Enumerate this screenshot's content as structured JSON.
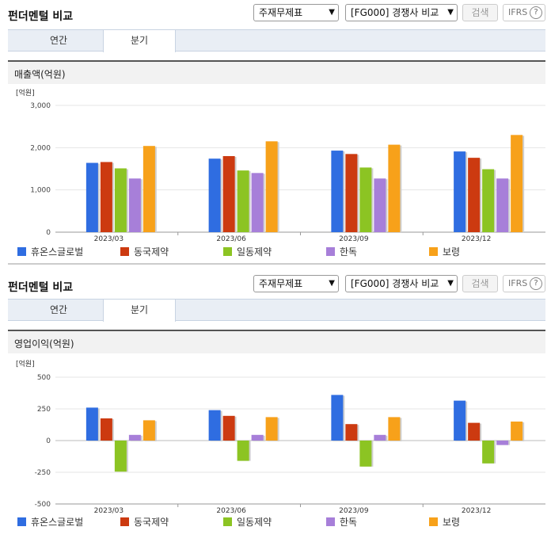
{
  "panels": [
    {
      "title": "펀더멘털 비교",
      "select1": "주재무제표",
      "select2": "[FG000] 경쟁사 비교",
      "search_label": "검색",
      "ifrs_label": "IFRS",
      "help_label": "?",
      "tabs": [
        "연간",
        "분기"
      ],
      "active_tab": 1,
      "subtitle": "매출액(억원)"
    },
    {
      "title": "펀더멘털 비교",
      "select1": "주재무제표",
      "select2": "[FG000] 경쟁사 비교",
      "search_label": "검색",
      "ifrs_label": "IFRS",
      "help_label": "?",
      "tabs": [
        "연간",
        "분기"
      ],
      "active_tab": 1,
      "subtitle": "영업이익(억원)"
    }
  ],
  "colors": [
    "#2f6de1",
    "#cc3a10",
    "#8cc423",
    "#a77fd9",
    "#f7a11a"
  ],
  "chart_data": [
    {
      "type": "bar",
      "unit_label": "[억원]",
      "categories": [
        "2023/03",
        "2023/06",
        "2023/09",
        "2023/12"
      ],
      "ylim": [
        0,
        3000
      ],
      "yticks": [
        0,
        1000,
        2000,
        3000
      ],
      "ytick_labels": [
        "0",
        "1,000",
        "2,000",
        "3,000"
      ],
      "grid": true,
      "legend": "bottom",
      "series": [
        {
          "name": "휴온스글로벌",
          "values": [
            1640,
            1740,
            1930,
            1910
          ]
        },
        {
          "name": "동국제약",
          "values": [
            1660,
            1800,
            1850,
            1760
          ]
        },
        {
          "name": "일동제약",
          "values": [
            1510,
            1460,
            1530,
            1490
          ]
        },
        {
          "name": "한독",
          "values": [
            1270,
            1400,
            1270,
            1270
          ]
        },
        {
          "name": "보령",
          "values": [
            2040,
            2150,
            2070,
            2300
          ]
        }
      ]
    },
    {
      "type": "bar",
      "unit_label": "[억원]",
      "categories": [
        "2023/03",
        "2023/06",
        "2023/09",
        "2023/12"
      ],
      "ylim": [
        -500,
        500
      ],
      "yticks": [
        -500,
        -250,
        0,
        250,
        500
      ],
      "ytick_labels": [
        "-500",
        "-250",
        "0",
        "250",
        "500"
      ],
      "grid": true,
      "legend": "bottom",
      "series": [
        {
          "name": "휴온스글로벌",
          "values": [
            260,
            240,
            360,
            315
          ]
        },
        {
          "name": "동국제약",
          "values": [
            175,
            195,
            130,
            140
          ]
        },
        {
          "name": "일동제약",
          "values": [
            -245,
            -160,
            -205,
            -180
          ]
        },
        {
          "name": "한독",
          "values": [
            45,
            45,
            45,
            -35
          ]
        },
        {
          "name": "보령",
          "values": [
            160,
            185,
            185,
            150
          ]
        }
      ]
    }
  ]
}
